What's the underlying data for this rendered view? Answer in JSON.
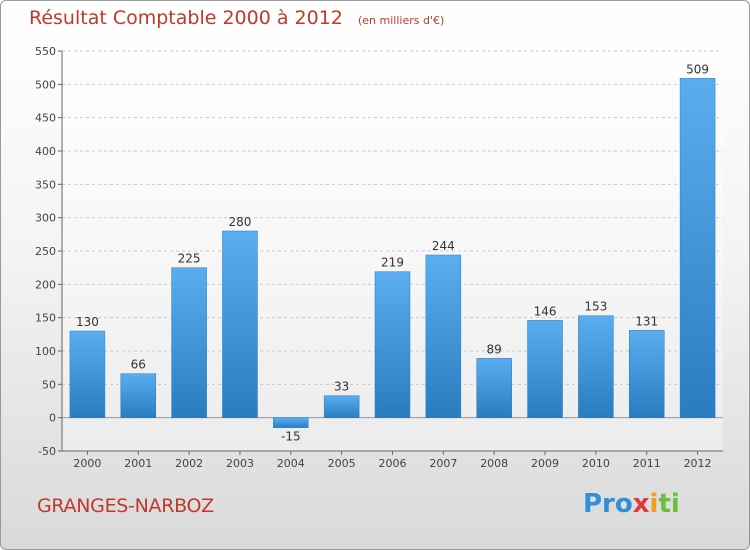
{
  "chart_data": {
    "type": "bar",
    "title": "Résultat Comptable 2000 à 2012",
    "subtitle": "(en milliers d'€)",
    "categories": [
      "2000",
      "2001",
      "2002",
      "2003",
      "2004",
      "2005",
      "2006",
      "2007",
      "2008",
      "2009",
      "2010",
      "2011",
      "2012"
    ],
    "values": [
      130,
      66,
      225,
      280,
      -15,
      33,
      219,
      244,
      89,
      146,
      153,
      131,
      509
    ],
    "data_labels": [
      "130",
      "66",
      "225",
      "280",
      "-15",
      "33",
      "219",
      "244",
      "89",
      "146",
      "153",
      "131",
      "509"
    ],
    "ylim": [
      -50,
      550
    ],
    "yticks": [
      -50,
      0,
      50,
      100,
      150,
      200,
      250,
      300,
      350,
      400,
      450,
      500,
      550
    ],
    "xlabel": "",
    "ylabel": "",
    "grid": true,
    "bar_color": "#3a8fd0",
    "title_color": "#c0392b"
  },
  "footer": {
    "commune": "GRANGES-NARBOZ",
    "brand": {
      "part1": "Pro",
      "part2": "x",
      "part3": "i",
      "part4": "ti"
    }
  }
}
